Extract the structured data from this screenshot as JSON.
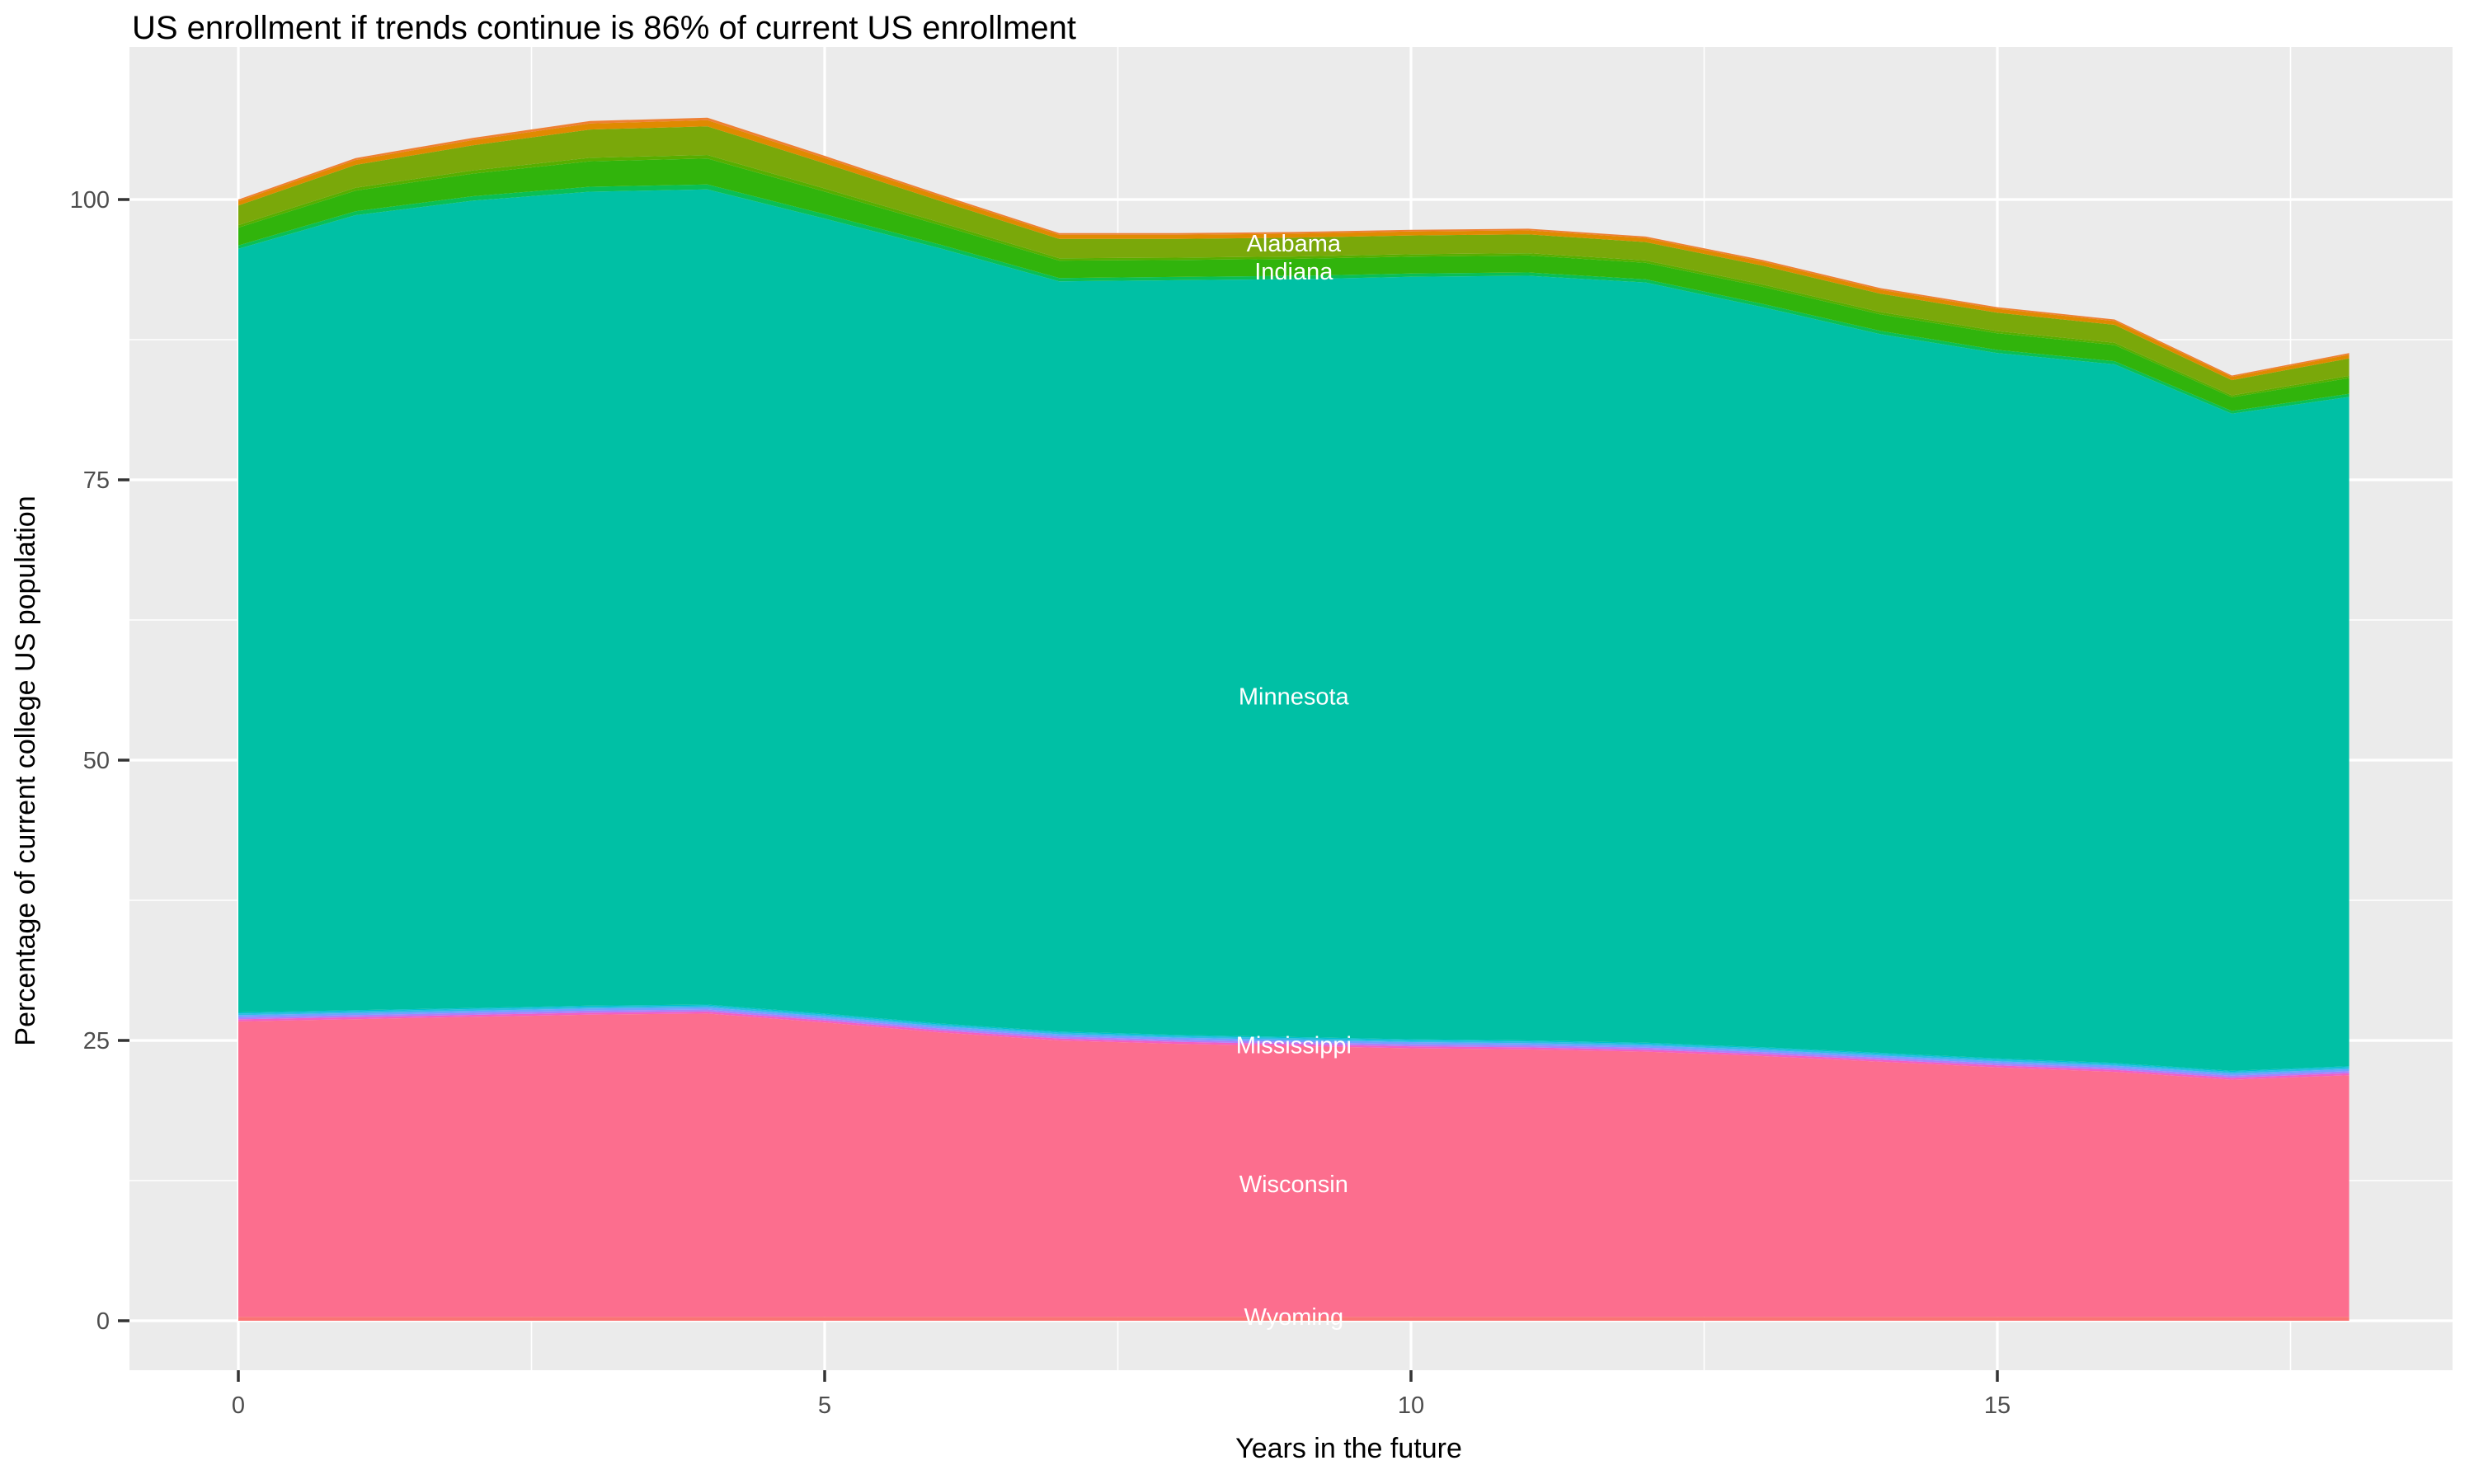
{
  "title": "US enrollment if trends continue is 86% of current US enrollment",
  "axes": {
    "x": {
      "title": "Years in the future",
      "major_ticks": [
        {
          "value": 0,
          "label": "0"
        },
        {
          "value": 5,
          "label": "5"
        },
        {
          "value": 10,
          "label": "10"
        },
        {
          "value": 15,
          "label": "15"
        }
      ],
      "minor_ticks": [
        2.5,
        7.5,
        12.5,
        17.5
      ]
    },
    "y": {
      "title": "Percentage of current college US population",
      "major_ticks": [
        {
          "value": 0,
          "label": "0"
        },
        {
          "value": 25,
          "label": "25"
        },
        {
          "value": 50,
          "label": "50"
        },
        {
          "value": 75,
          "label": "75"
        },
        {
          "value": 100,
          "label": "100"
        }
      ],
      "minor_ticks": [
        12.5,
        37.5,
        62.5,
        87.5
      ]
    }
  },
  "colors": {
    "panel_bg": "#EBEBEB",
    "grid": "#FFFFFF",
    "tick": "#333333",
    "tick_label": "#4D4D4D",
    "axis_title": "#000000",
    "title": "#000000",
    "state_label": "#FFFFFF"
  },
  "chart_data": {
    "type": "area",
    "stacked": true,
    "title": "US enrollment if trends continue is 86% of current US enrollment",
    "xlabel": "Years in the future",
    "ylabel": "Percentage of current college US population",
    "xlim": [
      0,
      18
    ],
    "ylim": [
      0,
      107.3
    ],
    "grid": "on",
    "legend": "none",
    "final_total_pct": 86,
    "x": [
      0,
      1,
      2,
      3,
      4,
      5,
      6,
      7,
      8,
      9,
      10,
      11,
      12,
      13,
      14,
      15,
      16,
      17,
      18
    ],
    "boundaries": {
      "pink_top": [
        26.7,
        26.9,
        27.1,
        27.3,
        27.4,
        26.6,
        25.7,
        25.0,
        24.7,
        24.5,
        24.3,
        24.2,
        24.0,
        23.6,
        23.1,
        22.6,
        22.2,
        21.5,
        21.9
      ],
      "teal_top": [
        95.6,
        98.6,
        99.9,
        100.7,
        100.9,
        98.3,
        95.6,
        92.7,
        92.8,
        92.9,
        93.1,
        93.2,
        92.6,
        90.4,
        88.0,
        86.3,
        85.3,
        80.9,
        82.4
      ],
      "stack_top": [
        100.0,
        103.7,
        105.5,
        107.0,
        107.3,
        103.9,
        100.4,
        97.0,
        97.0,
        97.1,
        97.3,
        97.4,
        96.7,
        94.6,
        92.1,
        90.4,
        89.3,
        84.3,
        86.3
      ]
    },
    "layers": [
      {
        "name": "wyoming",
        "color": "#FB7474",
        "top": {
          "base": "zero",
          "offset": 0.35
        }
      },
      {
        "name": "wisconsin",
        "color": "#FC6E8E",
        "top": {
          "base": "pink_top",
          "offset": 0
        }
      },
      {
        "name": "sliver-magenta",
        "color": "#F25FC4",
        "top": {
          "base": "pink_top",
          "offset": 0.18
        }
      },
      {
        "name": "sliver-violet",
        "color": "#AC80FA",
        "top": {
          "base": "pink_top",
          "offset": 0.36
        }
      },
      {
        "name": "sliver-blue",
        "color": "#6FA2FF",
        "top": {
          "base": "pink_top",
          "offset": 0.55
        }
      },
      {
        "name": "sliver-lightblue",
        "color": "#2EBCE4",
        "top": {
          "base": "pink_top",
          "offset": 0.7
        }
      },
      {
        "name": "sliver-cyan",
        "color": "#00C0CE",
        "top": {
          "base": "pink_top",
          "offset": 0.8
        }
      },
      {
        "name": "minnesota",
        "color": "#00C0A5",
        "top": {
          "base": "teal_top",
          "offset": 0
        }
      },
      {
        "name": "sliver-tealgreen",
        "color": "#0ABF55",
        "top": {
          "base": "teal_top",
          "frac": 0.07
        }
      },
      {
        "name": "indiana",
        "color": "#31B40C",
        "top": {
          "base": "teal_top",
          "frac": 0.43
        }
      },
      {
        "name": "sliver-yellowgreen",
        "color": "#57AE00",
        "top": {
          "base": "teal_top",
          "frac": 0.48
        }
      },
      {
        "name": "alabama",
        "color": "#7AA80A",
        "top": {
          "base": "teal_top",
          "frac": 0.88
        }
      },
      {
        "name": "orange-band",
        "color": "#E08A00",
        "top": {
          "base": "teal_top",
          "frac": 0.965
        }
      },
      {
        "name": "salmon-top",
        "color": "#EE8033",
        "top": {
          "base": "teal_top",
          "frac": 1.0
        }
      }
    ],
    "state_labels": [
      {
        "text": "Alabama",
        "x": 9,
        "y": 96.1
      },
      {
        "text": "Indiana",
        "x": 9,
        "y": 93.6
      },
      {
        "text": "Minnesota",
        "x": 9,
        "y": 55.7
      },
      {
        "text": "Mississippi",
        "x": 9,
        "y": 24.6
      },
      {
        "text": "Wisconsin",
        "x": 9,
        "y": 12.2
      },
      {
        "text": "Wyoming",
        "x": 9,
        "y": 0.35
      }
    ]
  }
}
